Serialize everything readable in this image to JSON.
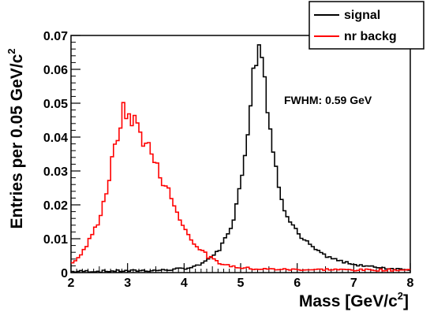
{
  "chart_data": {
    "type": "line",
    "xlabel": "Mass [GeV/c",
    "xlabel_sup": "2",
    "xlabel_end": "]",
    "ylabel": "Entries per 0.05 GeV/c",
    "ylabel_sup": "2",
    "xlim": [
      2,
      8
    ],
    "ylim": [
      0,
      0.07
    ],
    "xticks": [
      2,
      3,
      4,
      5,
      6,
      7,
      8
    ],
    "yticks": [
      0,
      0.01,
      0.02,
      0.03,
      0.04,
      0.05,
      0.06,
      0.07
    ],
    "ytick_labels": [
      "0",
      "0.01",
      "0.02",
      "0.03",
      "0.04",
      "0.05",
      "0.06",
      "0.07"
    ],
    "grid": false,
    "annotation": "FWHM: 0.59 GeV",
    "legend_position": "top-right",
    "bin_width": 0.05,
    "series": [
      {
        "name": "signal",
        "color": "#000000",
        "x": [
          2.0,
          2.2,
          2.4,
          2.6,
          2.8,
          3.0,
          3.2,
          3.4,
          3.6,
          3.8,
          4.0,
          4.2,
          4.4,
          4.5,
          4.6,
          4.7,
          4.8,
          4.9,
          5.0,
          5.05,
          5.1,
          5.15,
          5.2,
          5.25,
          5.3,
          5.35,
          5.4,
          5.45,
          5.5,
          5.55,
          5.6,
          5.65,
          5.7,
          5.75,
          5.8,
          5.9,
          6.0,
          6.1,
          6.2,
          6.3,
          6.4,
          6.5,
          6.6,
          6.8,
          7.0,
          7.2,
          7.4,
          7.6,
          7.8,
          8.0
        ],
        "y": [
          0.0003,
          0.0004,
          0.0004,
          0.0004,
          0.0005,
          0.0005,
          0.0006,
          0.0006,
          0.0007,
          0.0009,
          0.0012,
          0.0018,
          0.0035,
          0.0048,
          0.0065,
          0.009,
          0.0125,
          0.018,
          0.026,
          0.032,
          0.039,
          0.047,
          0.055,
          0.062,
          0.066,
          0.067,
          0.062,
          0.054,
          0.046,
          0.039,
          0.033,
          0.028,
          0.024,
          0.021,
          0.018,
          0.015,
          0.012,
          0.0098,
          0.0085,
          0.007,
          0.0058,
          0.005,
          0.0042,
          0.0032,
          0.0025,
          0.002,
          0.0016,
          0.0013,
          0.0011,
          0.001
        ]
      },
      {
        "name": "nr backg",
        "color": "#ff0000",
        "x": [
          2.0,
          2.1,
          2.2,
          2.3,
          2.4,
          2.5,
          2.6,
          2.7,
          2.75,
          2.8,
          2.85,
          2.9,
          2.95,
          3.0,
          3.05,
          3.1,
          3.15,
          3.2,
          3.25,
          3.3,
          3.35,
          3.4,
          3.45,
          3.5,
          3.6,
          3.7,
          3.8,
          3.9,
          4.0,
          4.1,
          4.2,
          4.3,
          4.4,
          4.5,
          4.6,
          4.7,
          4.8,
          5.0,
          5.2,
          5.5,
          6.0,
          6.5,
          7.0,
          7.5,
          8.0
        ],
        "y": [
          0.0025,
          0.004,
          0.006,
          0.0085,
          0.012,
          0.016,
          0.022,
          0.03,
          0.035,
          0.038,
          0.042,
          0.047,
          0.048,
          0.045,
          0.048,
          0.043,
          0.046,
          0.042,
          0.04,
          0.039,
          0.038,
          0.036,
          0.034,
          0.032,
          0.028,
          0.025,
          0.021,
          0.017,
          0.013,
          0.011,
          0.008,
          0.007,
          0.005,
          0.004,
          0.003,
          0.0025,
          0.002,
          0.0015,
          0.0012,
          0.001,
          0.0009,
          0.0009,
          0.0008,
          0.0008,
          0.0008
        ]
      }
    ]
  }
}
